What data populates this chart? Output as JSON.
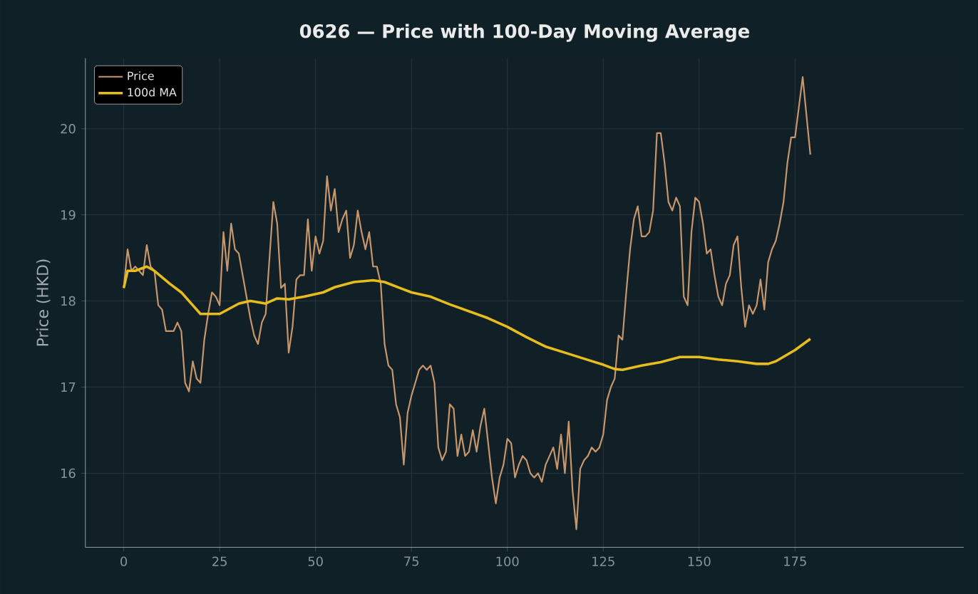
{
  "chart_data": {
    "type": "line",
    "title": "0626 — Price with 100-Day Moving Average",
    "ylabel": "Price (HKD)",
    "xlim": [
      -10,
      219
    ],
    "ylim": [
      15.14,
      20.82
    ],
    "xticks": [
      0,
      25,
      50,
      75,
      100,
      125,
      150,
      175
    ],
    "yticks": [
      16,
      17,
      18,
      19,
      20
    ],
    "grid": true,
    "legend": "top left",
    "series": [
      {
        "name": "Price",
        "color": "#c8966b",
        "x": [
          0,
          1,
          2,
          3,
          4,
          5,
          6,
          7,
          8,
          9,
          10,
          11,
          12,
          13,
          14,
          15,
          16,
          17,
          18,
          19,
          20,
          21,
          22,
          23,
          24,
          25,
          26,
          27,
          28,
          29,
          30,
          31,
          32,
          33,
          34,
          35,
          36,
          37,
          38,
          39,
          40,
          41,
          42,
          43,
          44,
          45,
          46,
          47,
          48,
          49,
          50,
          51,
          52,
          53,
          54,
          55,
          56,
          57,
          58,
          59,
          60,
          61,
          62,
          63,
          64,
          65,
          66,
          67,
          68,
          69,
          70,
          71,
          72,
          73,
          74,
          75,
          76,
          77,
          78,
          79,
          80,
          81,
          82,
          83,
          84,
          85,
          86,
          87,
          88,
          89,
          90,
          91,
          92,
          93,
          94,
          95,
          96,
          97,
          98,
          99,
          100,
          101,
          102,
          103,
          104,
          105,
          106,
          107,
          108,
          109,
          110,
          111,
          112,
          113,
          114,
          115,
          116,
          117,
          118,
          119,
          120,
          121,
          122,
          123,
          124,
          125,
          126,
          127,
          128,
          129,
          130,
          131,
          132,
          133,
          134,
          135,
          136,
          137,
          138,
          139,
          140,
          141,
          142,
          143,
          144,
          145,
          146,
          147,
          148,
          149,
          150,
          151,
          152,
          153,
          154,
          155,
          156,
          157,
          158,
          159,
          160,
          161,
          162,
          163,
          164,
          165,
          166,
          167,
          168,
          169,
          170,
          171,
          172,
          173,
          174,
          175,
          176,
          177,
          178,
          179
        ],
        "values": [
          18.15,
          18.6,
          18.35,
          18.4,
          18.35,
          18.3,
          18.65,
          18.4,
          18.35,
          17.95,
          17.9,
          17.65,
          17.65,
          17.65,
          17.75,
          17.65,
          17.05,
          16.95,
          17.3,
          17.1,
          17.05,
          17.55,
          17.85,
          18.1,
          18.05,
          17.95,
          18.8,
          18.35,
          18.9,
          18.6,
          18.55,
          18.3,
          18.05,
          17.8,
          17.6,
          17.5,
          17.75,
          17.85,
          18.5,
          19.15,
          18.9,
          18.15,
          18.2,
          17.4,
          17.7,
          18.25,
          18.3,
          18.3,
          18.95,
          18.35,
          18.75,
          18.55,
          18.7,
          19.45,
          19.05,
          19.3,
          18.8,
          18.95,
          19.05,
          18.5,
          18.65,
          19.05,
          18.8,
          18.6,
          18.8,
          18.4,
          18.4,
          18.2,
          17.5,
          17.25,
          17.2,
          16.8,
          16.65,
          16.1,
          16.7,
          16.9,
          17.05,
          17.2,
          17.25,
          17.2,
          17.25,
          17.05,
          16.3,
          16.15,
          16.25,
          16.8,
          16.75,
          16.2,
          16.45,
          16.2,
          16.25,
          16.5,
          16.25,
          16.55,
          16.75,
          16.35,
          15.95,
          15.65,
          15.95,
          16.1,
          16.4,
          16.35,
          15.95,
          16.1,
          16.2,
          16.15,
          16.0,
          15.95,
          16.0,
          15.9,
          16.1,
          16.2,
          16.3,
          16.05,
          16.45,
          16.0,
          16.6,
          15.8,
          15.35,
          16.05,
          16.15,
          16.2,
          16.3,
          16.25,
          16.3,
          16.45,
          16.85,
          17.0,
          17.1,
          17.6,
          17.55,
          18.1,
          18.6,
          18.95,
          19.1,
          18.75,
          18.75,
          18.8,
          19.05,
          19.95,
          19.95,
          19.6,
          19.15,
          19.05,
          19.2,
          19.1,
          18.05,
          17.95,
          18.8,
          19.2,
          19.15,
          18.9,
          18.55,
          18.6,
          18.3,
          18.05,
          17.95,
          18.2,
          18.3,
          18.65,
          18.75,
          18.15,
          17.7,
          17.95,
          17.85,
          17.95,
          18.25,
          17.9,
          18.45,
          18.6,
          18.7,
          18.9,
          19.15,
          19.6,
          19.9,
          19.9,
          20.25,
          20.6,
          20.15,
          19.7
        ]
      },
      {
        "name": "100d MA",
        "color": "#e6bd1c",
        "x": [
          0,
          1,
          3,
          6,
          8,
          12,
          15,
          18,
          20,
          25,
          30,
          33,
          37,
          40,
          43,
          47,
          52,
          55,
          60,
          65,
          68,
          72,
          75,
          80,
          85,
          90,
          95,
          100,
          105,
          110,
          115,
          120,
          125,
          128,
          130,
          135,
          140,
          145,
          150,
          155,
          160,
          165,
          168,
          170,
          175,
          179
        ],
        "values": [
          18.15,
          18.35,
          18.35,
          18.4,
          18.35,
          18.2,
          18.1,
          17.95,
          17.85,
          17.85,
          17.97,
          18.0,
          17.97,
          18.03,
          18.02,
          18.05,
          18.1,
          18.16,
          18.22,
          18.24,
          18.22,
          18.15,
          18.1,
          18.05,
          17.96,
          17.88,
          17.8,
          17.7,
          17.58,
          17.47,
          17.4,
          17.33,
          17.26,
          17.21,
          17.2,
          17.25,
          17.29,
          17.35,
          17.35,
          17.32,
          17.3,
          17.27,
          17.27,
          17.3,
          17.43,
          17.56
        ]
      }
    ]
  }
}
